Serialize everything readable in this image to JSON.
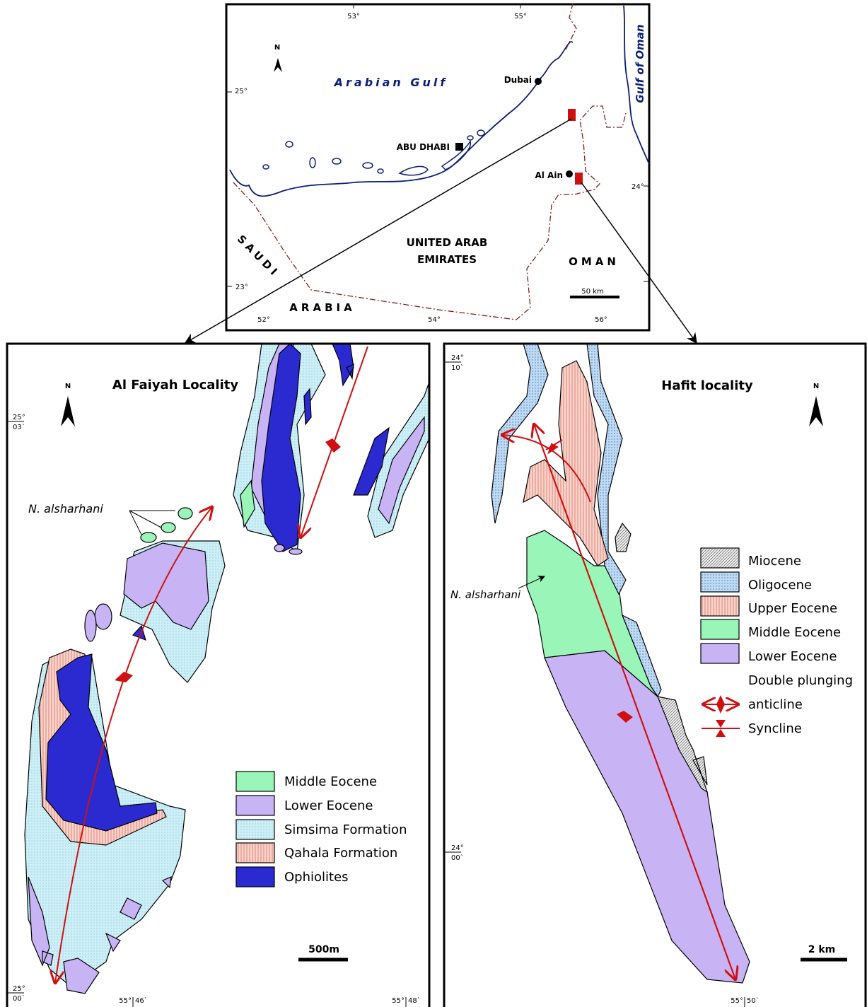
{
  "inset_map": {
    "longitude_labels_top": [
      "53°",
      "55°"
    ],
    "longitude_labels_bottom": [
      "52°",
      "54°",
      "56°"
    ],
    "latitude_labels": [
      "25°",
      "24°",
      "23°"
    ],
    "north": "N",
    "sea_labels": [
      "Arabian Gulf",
      "Gulf of Oman"
    ],
    "cities": [
      "Dubai",
      "ABU DHABI",
      "Al Ain"
    ],
    "countries": [
      "SAUDI",
      "ARABIA",
      "UNITED ARAB",
      "EMIRATES",
      "OMAN"
    ],
    "scale": "50 km"
  },
  "left_panel": {
    "title": "Al Faiyah Locality",
    "north": "N",
    "species": "N. alsharhani",
    "coordinates": [
      {
        "deg": "25°",
        "min": "03`"
      },
      {
        "deg": "25°",
        "min": "00`"
      },
      {
        "deg": "55°",
        "min": "46`"
      },
      {
        "deg": "55°",
        "min": "48`"
      }
    ],
    "legend": [
      "Middle Eocene",
      "Lower Eocene",
      "Simsima Formation",
      "Qahala Formation",
      "Ophiolites"
    ],
    "scale": "500m"
  },
  "right_panel": {
    "title": "Hafit locality",
    "north": "N",
    "species": "N. alsharhani",
    "coordinates": [
      {
        "deg": "24°",
        "min": "10`"
      },
      {
        "deg": "24°",
        "min": "00`"
      },
      {
        "deg": "55°",
        "min": "50`"
      }
    ],
    "legend": [
      "Miocene",
      "Oligocene",
      "Upper Eocene",
      "Middle Eocene",
      "Lower Eocene"
    ],
    "fold_legend": [
      {
        "lines": [
          "Double plunging",
          "anticline"
        ]
      },
      {
        "lines": [
          "Syncline"
        ]
      }
    ],
    "scale": "2 km"
  }
}
